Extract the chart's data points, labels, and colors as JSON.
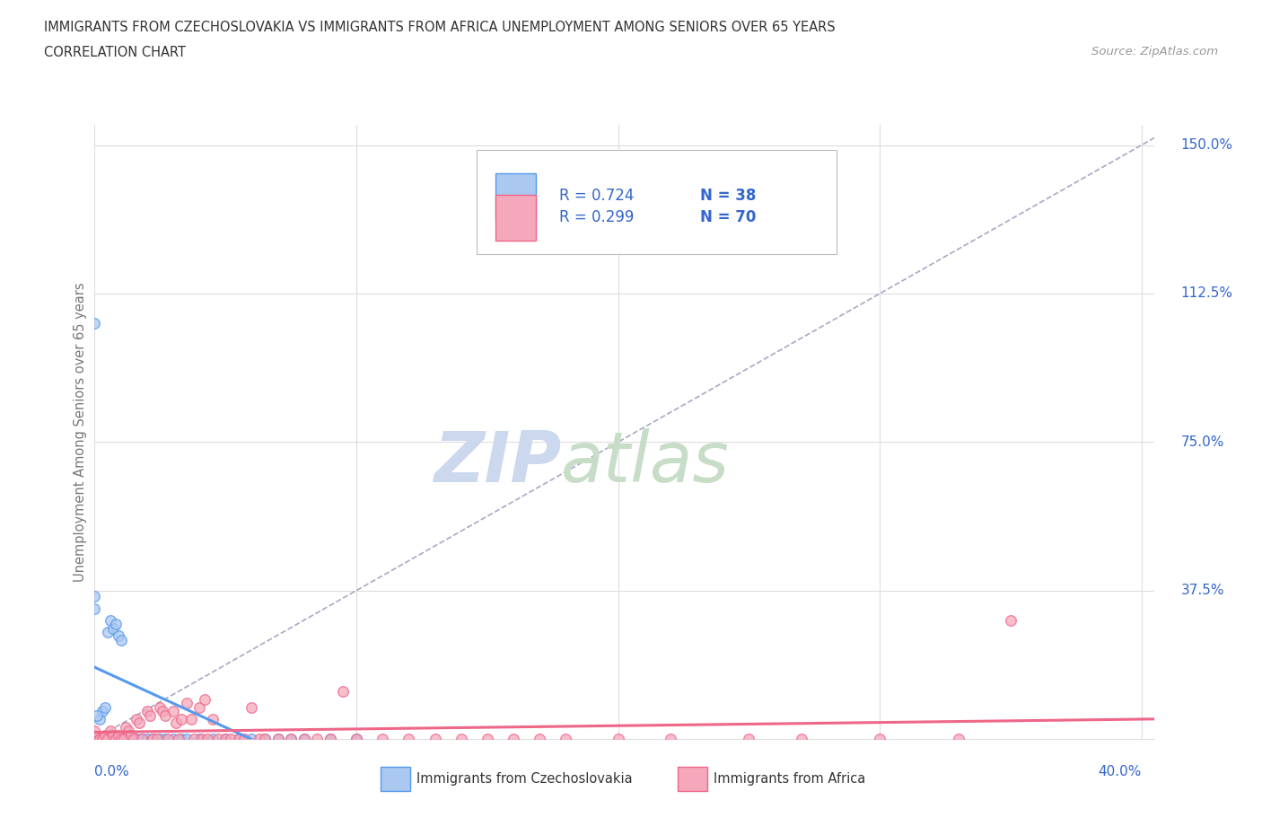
{
  "title_line1": "IMMIGRANTS FROM CZECHOSLOVAKIA VS IMMIGRANTS FROM AFRICA UNEMPLOYMENT AMONG SENIORS OVER 65 YEARS",
  "title_line2": "CORRELATION CHART",
  "source_text": "Source: ZipAtlas.com",
  "ylabel": "Unemployment Among Seniors over 65 years",
  "color_czech_fill": "#aac8f0",
  "color_czech_edge": "#5599ee",
  "color_africa_fill": "#f5a8bc",
  "color_africa_edge": "#ee6688",
  "color_diag": "#9999bb",
  "color_grid": "#dddddd",
  "color_axis_label": "#3366cc",
  "color_ylabel": "#777777",
  "color_title": "#333333",
  "color_source": "#999999",
  "watermark_zip_color": "#ccd8ee",
  "watermark_atlas_color": "#c8ddc8",
  "legend_r1": "R = 0.724",
  "legend_n1": "N = 38",
  "legend_r2": "R = 0.299",
  "legend_n2": "N = 70"
}
